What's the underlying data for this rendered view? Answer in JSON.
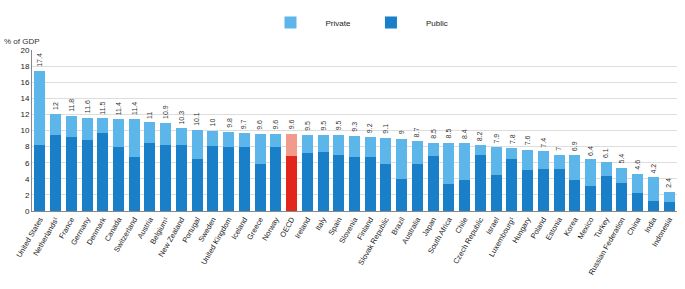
{
  "chart_data": {
    "type": "bar",
    "stacked": true,
    "y_label": "% of GDP",
    "categories": [
      "United States",
      "Netherlands¹",
      "France",
      "Germany",
      "Denmark",
      "Canada",
      "Switzerland",
      "Austria",
      "Belgium¹",
      "New Zealand",
      "Portugal",
      "Sweden",
      "United Kingdom",
      "Iceland",
      "Greece",
      "Norway",
      "OECD",
      "Ireland",
      "Italy",
      "Spain",
      "Slovenia",
      "Finland",
      "Slovak Republic",
      "Brazil",
      "Australia",
      "Japan",
      "South Africa",
      "Chile",
      "Czech Republic",
      "Israel",
      "Luxembourg¹",
      "Hungary",
      "Poland",
      "Estonia",
      "Korea",
      "Mexico",
      "Turkey",
      "Russian Federation",
      "China",
      "India",
      "Indonesia"
    ],
    "series": [
      {
        "name": "Public",
        "color": "#1a7fc9",
        "colors": [
          "#1a7fc9",
          "#1a7fc9",
          "#1a7fc9",
          "#1a7fc9",
          "#1a7fc9",
          "#1a7fc9",
          "#1a7fc9",
          "#1a7fc9",
          "#1a7fc9",
          "#1a7fc9",
          "#1a7fc9",
          "#1a7fc9",
          "#1a7fc9",
          "#1a7fc9",
          "#1a7fc9",
          "#1a7fc9",
          "#e3261c",
          "#1a7fc9",
          "#1a7fc9",
          "#1a7fc9",
          "#1a7fc9",
          "#1a7fc9",
          "#1a7fc9",
          "#1a7fc9",
          "#1a7fc9",
          "#1a7fc9",
          "#1a7fc9",
          "#1a7fc9",
          "#1a7fc9",
          "#1a7fc9",
          "#1a7fc9",
          "#1a7fc9",
          "#1a7fc9",
          "#1a7fc9",
          "#1a7fc9",
          "#1a7fc9",
          "#1a7fc9",
          "#1a7fc9",
          "#1a7fc9",
          "#1a7fc9",
          "#1a7fc9"
        ],
        "values": [
          8.2,
          9.4,
          9.2,
          8.8,
          9.7,
          8.0,
          6.7,
          8.5,
          8.2,
          8.2,
          6.4,
          8.1,
          8.0,
          7.9,
          5.8,
          8.0,
          6.8,
          7.2,
          7.3,
          6.9,
          6.7,
          6.7,
          5.9,
          4.0,
          5.8,
          6.8,
          3.3,
          3.9,
          6.9,
          4.5,
          6.4,
          5.1,
          5.2,
          5.2,
          3.9,
          3.1,
          4.4,
          3.5,
          2.2,
          1.3,
          1.1
        ]
      },
      {
        "name": "Private",
        "color": "#5cb6ea",
        "colors": [
          "#5cb6ea",
          "#5cb6ea",
          "#5cb6ea",
          "#5cb6ea",
          "#5cb6ea",
          "#5cb6ea",
          "#5cb6ea",
          "#5cb6ea",
          "#5cb6ea",
          "#5cb6ea",
          "#5cb6ea",
          "#5cb6ea",
          "#5cb6ea",
          "#5cb6ea",
          "#5cb6ea",
          "#5cb6ea",
          "#f29a8c",
          "#5cb6ea",
          "#5cb6ea",
          "#5cb6ea",
          "#5cb6ea",
          "#5cb6ea",
          "#5cb6ea",
          "#5cb6ea",
          "#5cb6ea",
          "#5cb6ea",
          "#5cb6ea",
          "#5cb6ea",
          "#5cb6ea",
          "#5cb6ea",
          "#5cb6ea",
          "#5cb6ea",
          "#5cb6ea",
          "#5cb6ea",
          "#5cb6ea",
          "#5cb6ea",
          "#5cb6ea",
          "#5cb6ea",
          "#5cb6ea",
          "#5cb6ea",
          "#5cb6ea"
        ],
        "values": [
          9.2,
          2.6,
          2.6,
          2.8,
          1.8,
          3.4,
          4.7,
          2.5,
          2.7,
          2.1,
          3.7,
          1.9,
          1.8,
          1.8,
          3.8,
          1.6,
          2.8,
          2.3,
          2.2,
          2.6,
          2.6,
          2.5,
          3.2,
          5.0,
          2.9,
          1.7,
          5.2,
          4.5,
          1.3,
          3.4,
          1.4,
          2.5,
          2.2,
          1.8,
          3.0,
          3.3,
          1.7,
          1.9,
          2.4,
          2.9,
          1.3
        ]
      }
    ],
    "totals": [
      17.4,
      12.0,
      11.8,
      11.6,
      11.5,
      11.4,
      11.4,
      11.0,
      10.9,
      10.3,
      10.1,
      10.0,
      9.8,
      9.7,
      9.6,
      9.6,
      9.6,
      9.5,
      9.5,
      9.5,
      9.3,
      9.2,
      9.1,
      9.0,
      8.7,
      8.5,
      8.5,
      8.4,
      8.2,
      7.9,
      7.8,
      7.6,
      7.4,
      7.0,
      6.9,
      6.4,
      6.1,
      5.4,
      4.6,
      4.2,
      2.4
    ],
    "data_labels": true,
    "ylim": [
      0,
      20
    ],
    "yticks": [
      0,
      2,
      4,
      6,
      8,
      10,
      12,
      14,
      16,
      18,
      20
    ],
    "grid": true,
    "legend": "top"
  }
}
